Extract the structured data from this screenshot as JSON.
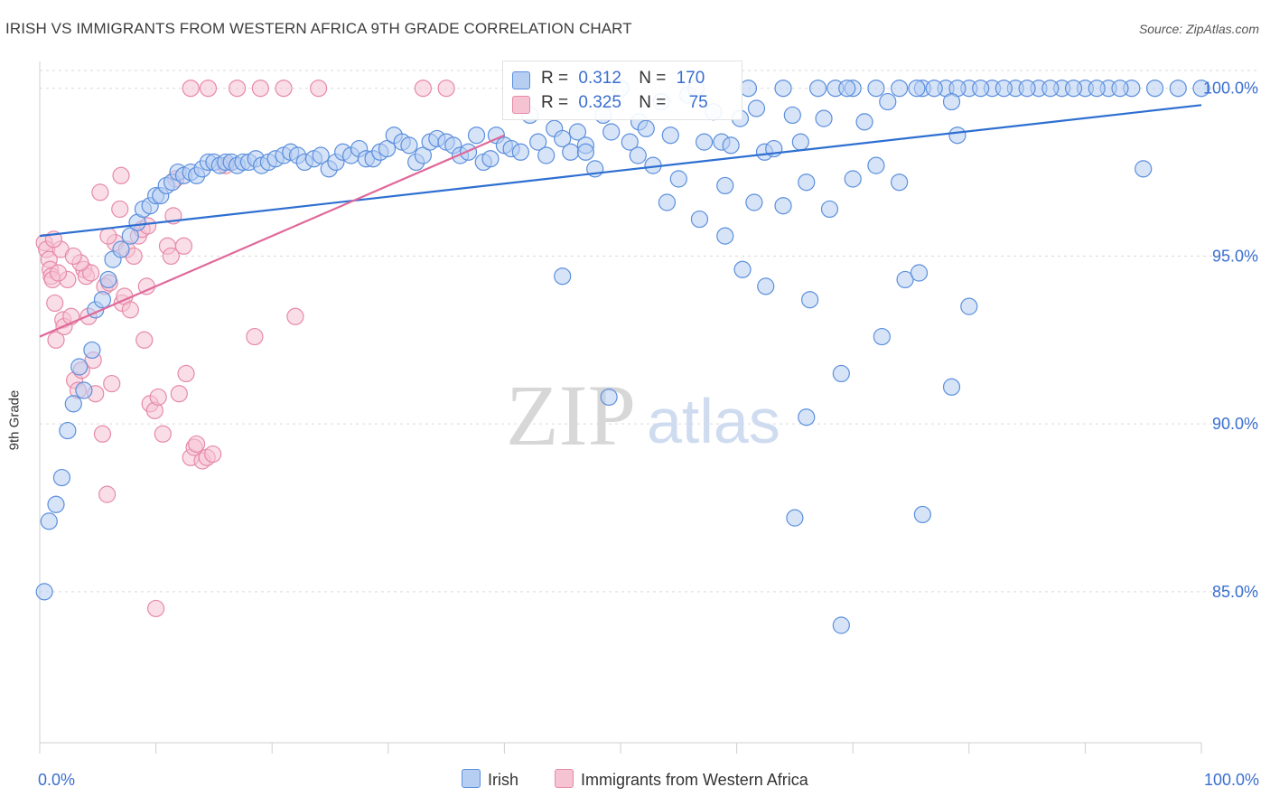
{
  "title": "IRISH VS IMMIGRANTS FROM WESTERN AFRICA 9TH GRADE CORRELATION CHART",
  "source": "Source: ZipAtlas.com",
  "watermark": {
    "zip": "ZIP",
    "atlas": "atlas"
  },
  "legend_stats": {
    "r_label": "R =",
    "n_label": "N =",
    "irish": {
      "r": "0.312",
      "n": "170"
    },
    "africa": {
      "r": "0.325",
      "n": "75"
    }
  },
  "legend_bottom": {
    "irish": "Irish",
    "africa": "Immigrants from Western Africa"
  },
  "colors": {
    "irish_fill": "#b7cef3",
    "irish_edge": "#5b8fdd",
    "irish_line": "#2e6fd1",
    "africa_fill": "#f6c3d3",
    "africa_edge": "#e68aa8",
    "africa_line": "#e0699a",
    "axis_text": "#3a6fd0",
    "grid": "#d9d9d9"
  },
  "chart_data": {
    "type": "scatter",
    "title": "IRISH VS IMMIGRANTS FROM WESTERN AFRICA 9TH GRADE CORRELATION CHART",
    "xlabel": "",
    "ylabel": "9th Grade",
    "xlim": [
      0,
      100
    ],
    "ylim": [
      80.5,
      100.8
    ],
    "x_tick_labels": [
      "0.0%",
      "100.0%"
    ],
    "y_ticks": [
      85,
      90,
      95,
      100
    ],
    "y_tick_labels": [
      "85.0%",
      "90.0%",
      "95.0%",
      "100.0%"
    ],
    "grid": true,
    "series": [
      {
        "name": "Irish",
        "r": 0.312,
        "n": 170,
        "trend": {
          "x": [
            0,
            100
          ],
          "y": [
            95.6,
            99.5
          ]
        },
        "points": [
          [
            0.4,
            85.0
          ],
          [
            0.8,
            87.1
          ],
          [
            1.4,
            87.6
          ],
          [
            1.9,
            88.4
          ],
          [
            2.4,
            89.8
          ],
          [
            2.9,
            90.6
          ],
          [
            3.4,
            91.7
          ],
          [
            3.8,
            91.0
          ],
          [
            4.5,
            92.2
          ],
          [
            4.8,
            93.4
          ],
          [
            5.4,
            93.7
          ],
          [
            5.9,
            94.3
          ],
          [
            6.3,
            94.9
          ],
          [
            7.0,
            95.2
          ],
          [
            7.8,
            95.6
          ],
          [
            8.4,
            96.0
          ],
          [
            8.9,
            96.4
          ],
          [
            9.5,
            96.5
          ],
          [
            10.0,
            96.8
          ],
          [
            10.4,
            96.8
          ],
          [
            10.9,
            97.1
          ],
          [
            11.4,
            97.2
          ],
          [
            11.9,
            97.5
          ],
          [
            12.4,
            97.4
          ],
          [
            13.0,
            97.5
          ],
          [
            13.5,
            97.4
          ],
          [
            14.0,
            97.6
          ],
          [
            14.5,
            97.8
          ],
          [
            15.0,
            97.8
          ],
          [
            15.5,
            97.7
          ],
          [
            16.0,
            97.8
          ],
          [
            16.5,
            97.8
          ],
          [
            17.0,
            97.7
          ],
          [
            17.5,
            97.8
          ],
          [
            18.0,
            97.8
          ],
          [
            18.6,
            97.9
          ],
          [
            19.1,
            97.7
          ],
          [
            19.7,
            97.8
          ],
          [
            20.3,
            97.9
          ],
          [
            21.0,
            98.0
          ],
          [
            21.6,
            98.1
          ],
          [
            22.2,
            98.0
          ],
          [
            22.8,
            97.8
          ],
          [
            23.6,
            97.9
          ],
          [
            24.2,
            98.0
          ],
          [
            24.9,
            97.6
          ],
          [
            25.5,
            97.8
          ],
          [
            26.1,
            98.1
          ],
          [
            26.8,
            98.0
          ],
          [
            27.5,
            98.2
          ],
          [
            28.1,
            97.9
          ],
          [
            28.7,
            97.9
          ],
          [
            29.3,
            98.1
          ],
          [
            29.9,
            98.2
          ],
          [
            30.5,
            98.6
          ],
          [
            31.2,
            98.4
          ],
          [
            31.8,
            98.3
          ],
          [
            32.4,
            97.8
          ],
          [
            33.0,
            98.0
          ],
          [
            33.6,
            98.4
          ],
          [
            34.2,
            98.5
          ],
          [
            35.0,
            98.4
          ],
          [
            35.6,
            98.3
          ],
          [
            36.2,
            98.0
          ],
          [
            36.9,
            98.1
          ],
          [
            37.6,
            98.6
          ],
          [
            38.2,
            97.8
          ],
          [
            38.8,
            97.9
          ],
          [
            39.3,
            98.6
          ],
          [
            40.0,
            98.3
          ],
          [
            40.6,
            98.2
          ],
          [
            41.4,
            98.1
          ],
          [
            42.2,
            99.2
          ],
          [
            42.9,
            98.4
          ],
          [
            43.6,
            98.0
          ],
          [
            44.3,
            98.8
          ],
          [
            45.0,
            98.5
          ],
          [
            45.7,
            98.1
          ],
          [
            46.3,
            98.7
          ],
          [
            47.0,
            98.3
          ],
          [
            47.8,
            97.6
          ],
          [
            48.5,
            99.2
          ],
          [
            49.2,
            98.7
          ],
          [
            50.0,
            100.0
          ],
          [
            50.8,
            98.4
          ],
          [
            51.6,
            99.0
          ],
          [
            52.2,
            98.8
          ],
          [
            52.8,
            97.7
          ],
          [
            53.5,
            99.6
          ],
          [
            54.3,
            98.6
          ],
          [
            55.0,
            97.3
          ],
          [
            55.8,
            99.8
          ],
          [
            56.5,
            100.0
          ],
          [
            57.2,
            98.4
          ],
          [
            58.0,
            99.3
          ],
          [
            58.7,
            98.4
          ],
          [
            59.5,
            98.3
          ],
          [
            60.3,
            99.1
          ],
          [
            61.0,
            100.0
          ],
          [
            61.7,
            99.4
          ],
          [
            62.4,
            98.1
          ],
          [
            63.2,
            98.2
          ],
          [
            64.0,
            100.0
          ],
          [
            64.8,
            99.2
          ],
          [
            65.5,
            98.4
          ],
          [
            67.0,
            100.0
          ],
          [
            68.5,
            100.0
          ],
          [
            70.0,
            100.0
          ],
          [
            72.0,
            100.0
          ],
          [
            74.0,
            100.0
          ],
          [
            76.0,
            100.0
          ],
          [
            78.0,
            100.0
          ],
          [
            80.0,
            100.0
          ],
          [
            82.0,
            100.0
          ],
          [
            84.0,
            100.0
          ],
          [
            86.0,
            100.0
          ],
          [
            88.0,
            100.0
          ],
          [
            90.0,
            100.0
          ],
          [
            92.0,
            100.0
          ],
          [
            94.0,
            100.0
          ],
          [
            96.0,
            100.0
          ],
          [
            98.0,
            100.0
          ],
          [
            100.0,
            100.0
          ],
          [
            71.0,
            99.0
          ],
          [
            67.5,
            99.1
          ],
          [
            75.5,
            100.0
          ],
          [
            77.0,
            100.0
          ],
          [
            79.0,
            100.0
          ],
          [
            81.0,
            100.0
          ],
          [
            83.0,
            100.0
          ],
          [
            85.0,
            100.0
          ],
          [
            87.0,
            100.0
          ],
          [
            89.0,
            100.0
          ],
          [
            91.0,
            100.0
          ],
          [
            93.0,
            100.0
          ],
          [
            69.5,
            100.0
          ],
          [
            73.0,
            99.6
          ],
          [
            78.5,
            99.6
          ],
          [
            47.0,
            98.1
          ],
          [
            51.5,
            98.0
          ],
          [
            54.0,
            96.6
          ],
          [
            56.8,
            96.1
          ],
          [
            59.0,
            97.1
          ],
          [
            61.5,
            96.6
          ],
          [
            64.0,
            96.5
          ],
          [
            66.0,
            97.2
          ],
          [
            68.0,
            96.4
          ],
          [
            70.0,
            97.3
          ],
          [
            72.0,
            97.7
          ],
          [
            74.0,
            97.2
          ],
          [
            79.0,
            98.6
          ],
          [
            95.0,
            97.6
          ],
          [
            59.0,
            95.6
          ],
          [
            60.5,
            94.6
          ],
          [
            45.0,
            94.4
          ],
          [
            62.5,
            94.1
          ],
          [
            66.3,
            93.7
          ],
          [
            74.5,
            94.3
          ],
          [
            75.7,
            94.5
          ],
          [
            80.0,
            93.5
          ],
          [
            72.5,
            92.6
          ],
          [
            69.0,
            91.5
          ],
          [
            78.5,
            91.1
          ],
          [
            49.0,
            90.8
          ],
          [
            66.0,
            90.2
          ],
          [
            76.0,
            87.3
          ],
          [
            65.0,
            87.2
          ],
          [
            69.0,
            84.0
          ]
        ]
      },
      {
        "name": "Immigrants from Western Africa",
        "r": 0.325,
        "n": 75,
        "trend": {
          "x": [
            0,
            40
          ],
          "y": [
            92.6,
            98.6
          ]
        },
        "points": [
          [
            0.4,
            95.4
          ],
          [
            0.6,
            95.2
          ],
          [
            0.8,
            94.9
          ],
          [
            0.9,
            94.6
          ],
          [
            1.0,
            94.4
          ],
          [
            1.1,
            94.3
          ],
          [
            1.3,
            93.6
          ],
          [
            1.4,
            92.5
          ],
          [
            1.8,
            95.2
          ],
          [
            2.0,
            93.1
          ],
          [
            2.1,
            92.9
          ],
          [
            2.4,
            94.3
          ],
          [
            2.7,
            93.2
          ],
          [
            3.0,
            91.3
          ],
          [
            3.3,
            91.0
          ],
          [
            3.6,
            91.6
          ],
          [
            3.8,
            94.6
          ],
          [
            4.0,
            94.4
          ],
          [
            4.2,
            93.2
          ],
          [
            4.4,
            94.5
          ],
          [
            4.6,
            91.9
          ],
          [
            4.8,
            90.9
          ],
          [
            5.2,
            96.9
          ],
          [
            5.4,
            89.7
          ],
          [
            5.6,
            94.1
          ],
          [
            5.8,
            87.9
          ],
          [
            6.0,
            94.2
          ],
          [
            6.2,
            91.2
          ],
          [
            6.5,
            95.4
          ],
          [
            6.9,
            96.4
          ],
          [
            7.1,
            93.6
          ],
          [
            7.3,
            93.8
          ],
          [
            7.5,
            95.2
          ],
          [
            7.8,
            93.4
          ],
          [
            8.1,
            95.0
          ],
          [
            8.5,
            95.6
          ],
          [
            8.8,
            95.8
          ],
          [
            9.0,
            92.5
          ],
          [
            9.2,
            94.1
          ],
          [
            9.5,
            90.6
          ],
          [
            9.9,
            90.4
          ],
          [
            10.2,
            90.8
          ],
          [
            10.6,
            89.7
          ],
          [
            11.0,
            95.3
          ],
          [
            11.3,
            95.0
          ],
          [
            11.7,
            97.3
          ],
          [
            12.0,
            90.9
          ],
          [
            12.4,
            95.3
          ],
          [
            12.6,
            91.5
          ],
          [
            13.0,
            89.0
          ],
          [
            13.3,
            89.3
          ],
          [
            13.5,
            89.4
          ],
          [
            14.0,
            88.9
          ],
          [
            14.4,
            89.0
          ],
          [
            14.9,
            89.1
          ],
          [
            13.0,
            100.0
          ],
          [
            14.5,
            100.0
          ],
          [
            17.0,
            100.0
          ],
          [
            19.0,
            100.0
          ],
          [
            21.0,
            100.0
          ],
          [
            24.0,
            100.0
          ],
          [
            33.0,
            100.0
          ],
          [
            35.0,
            100.0
          ],
          [
            16.0,
            97.7
          ],
          [
            18.5,
            92.6
          ],
          [
            22.0,
            93.2
          ],
          [
            10.0,
            84.5
          ],
          [
            3.5,
            94.8
          ],
          [
            2.9,
            95.0
          ],
          [
            1.6,
            94.5
          ],
          [
            11.5,
            96.2
          ],
          [
            9.3,
            95.9
          ],
          [
            7.0,
            97.4
          ],
          [
            5.9,
            95.6
          ],
          [
            1.2,
            95.5
          ]
        ]
      }
    ]
  }
}
